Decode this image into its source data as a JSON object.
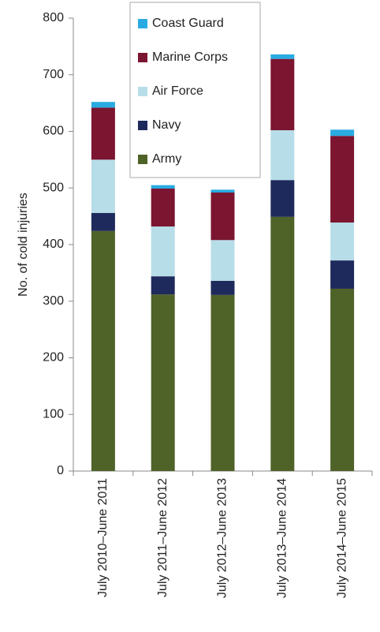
{
  "chart_data": {
    "type": "stacked_bar",
    "y_label": "No. of cold injuries",
    "categories": [
      "July 2010–June 2011",
      "July 2011–June 2012",
      "July 2012–June 2013",
      "July 2013–June 2014",
      "July 2014–June 2015"
    ],
    "series": [
      {
        "name": "Army",
        "color": "#4f6228",
        "values": [
          424,
          312,
          311,
          449,
          322
        ]
      },
      {
        "name": "Navy",
        "color": "#1f2a5c",
        "values": [
          32,
          32,
          25,
          65,
          50
        ]
      },
      {
        "name": "Air Force",
        "color": "#b7dde8",
        "values": [
          94,
          88,
          72,
          88,
          67
        ]
      },
      {
        "name": "Marine Corps",
        "color": "#7b1530",
        "values": [
          92,
          67,
          84,
          126,
          153
        ]
      },
      {
        "name": "Coast Guard",
        "color": "#29abe2",
        "values": [
          10,
          6,
          5,
          8,
          11
        ]
      }
    ],
    "ylim": [
      0,
      800
    ],
    "yticks": [
      0,
      100,
      200,
      300,
      400,
      500,
      600,
      700,
      800
    ],
    "legend": "top"
  }
}
